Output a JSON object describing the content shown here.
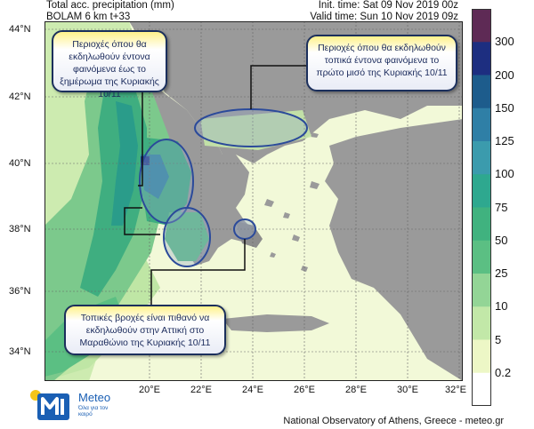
{
  "header": {
    "line1_left": "Total acc. precipitation (mm)",
    "line2_left": "BOLAM 6 km t+33",
    "line1_right": "Init. time: Sat 09 Nov 2019 00z",
    "line2_right": "Valid time: Sun 10 Nov 2019 09z"
  },
  "map": {
    "lat_labels": [
      "44°N",
      "42°N",
      "40°N",
      "38°N",
      "36°N",
      "34°N"
    ],
    "lon_labels": [
      "20°E",
      "22°E",
      "24°E",
      "26°E",
      "28°E",
      "30°E",
      "32°E"
    ]
  },
  "colorbar": {
    "labels": [
      "300",
      "200",
      "150",
      "125",
      "100",
      "75",
      "50",
      "25",
      "10",
      "5",
      "0.2"
    ],
    "colors": [
      "#5e2a55",
      "#1d2e80",
      "#1d5c8c",
      "#2f7fa6",
      "#3b9bad",
      "#2ea88f",
      "#40b27f",
      "#5bbf83",
      "#93d596",
      "#c2e8a8",
      "#edf7c6",
      "#ffffff"
    ]
  },
  "callouts": {
    "northwest": "Περιοχές όπου θα εκδηλωθούν έντονα φαινόμενα έως το ξημέρωμα της Κυριακής 10/11",
    "northeast": "Περιοχές όπου θα εκδηλωθούν τοπικά έντονα φαινόμενα το πρώτο μισό της Κυριακής 10/11",
    "south": "Τοπικές βροχές είναι πιθανό να εκδηλωθούν στην Αττική στο Μαραθώνιο της Κυριακής 10/11"
  },
  "logo": {
    "word": "Meteo",
    "tagline": "Όλα για τον καιρό"
  },
  "credit": "National Observatory of Athens, Greece - meteo.gr"
}
